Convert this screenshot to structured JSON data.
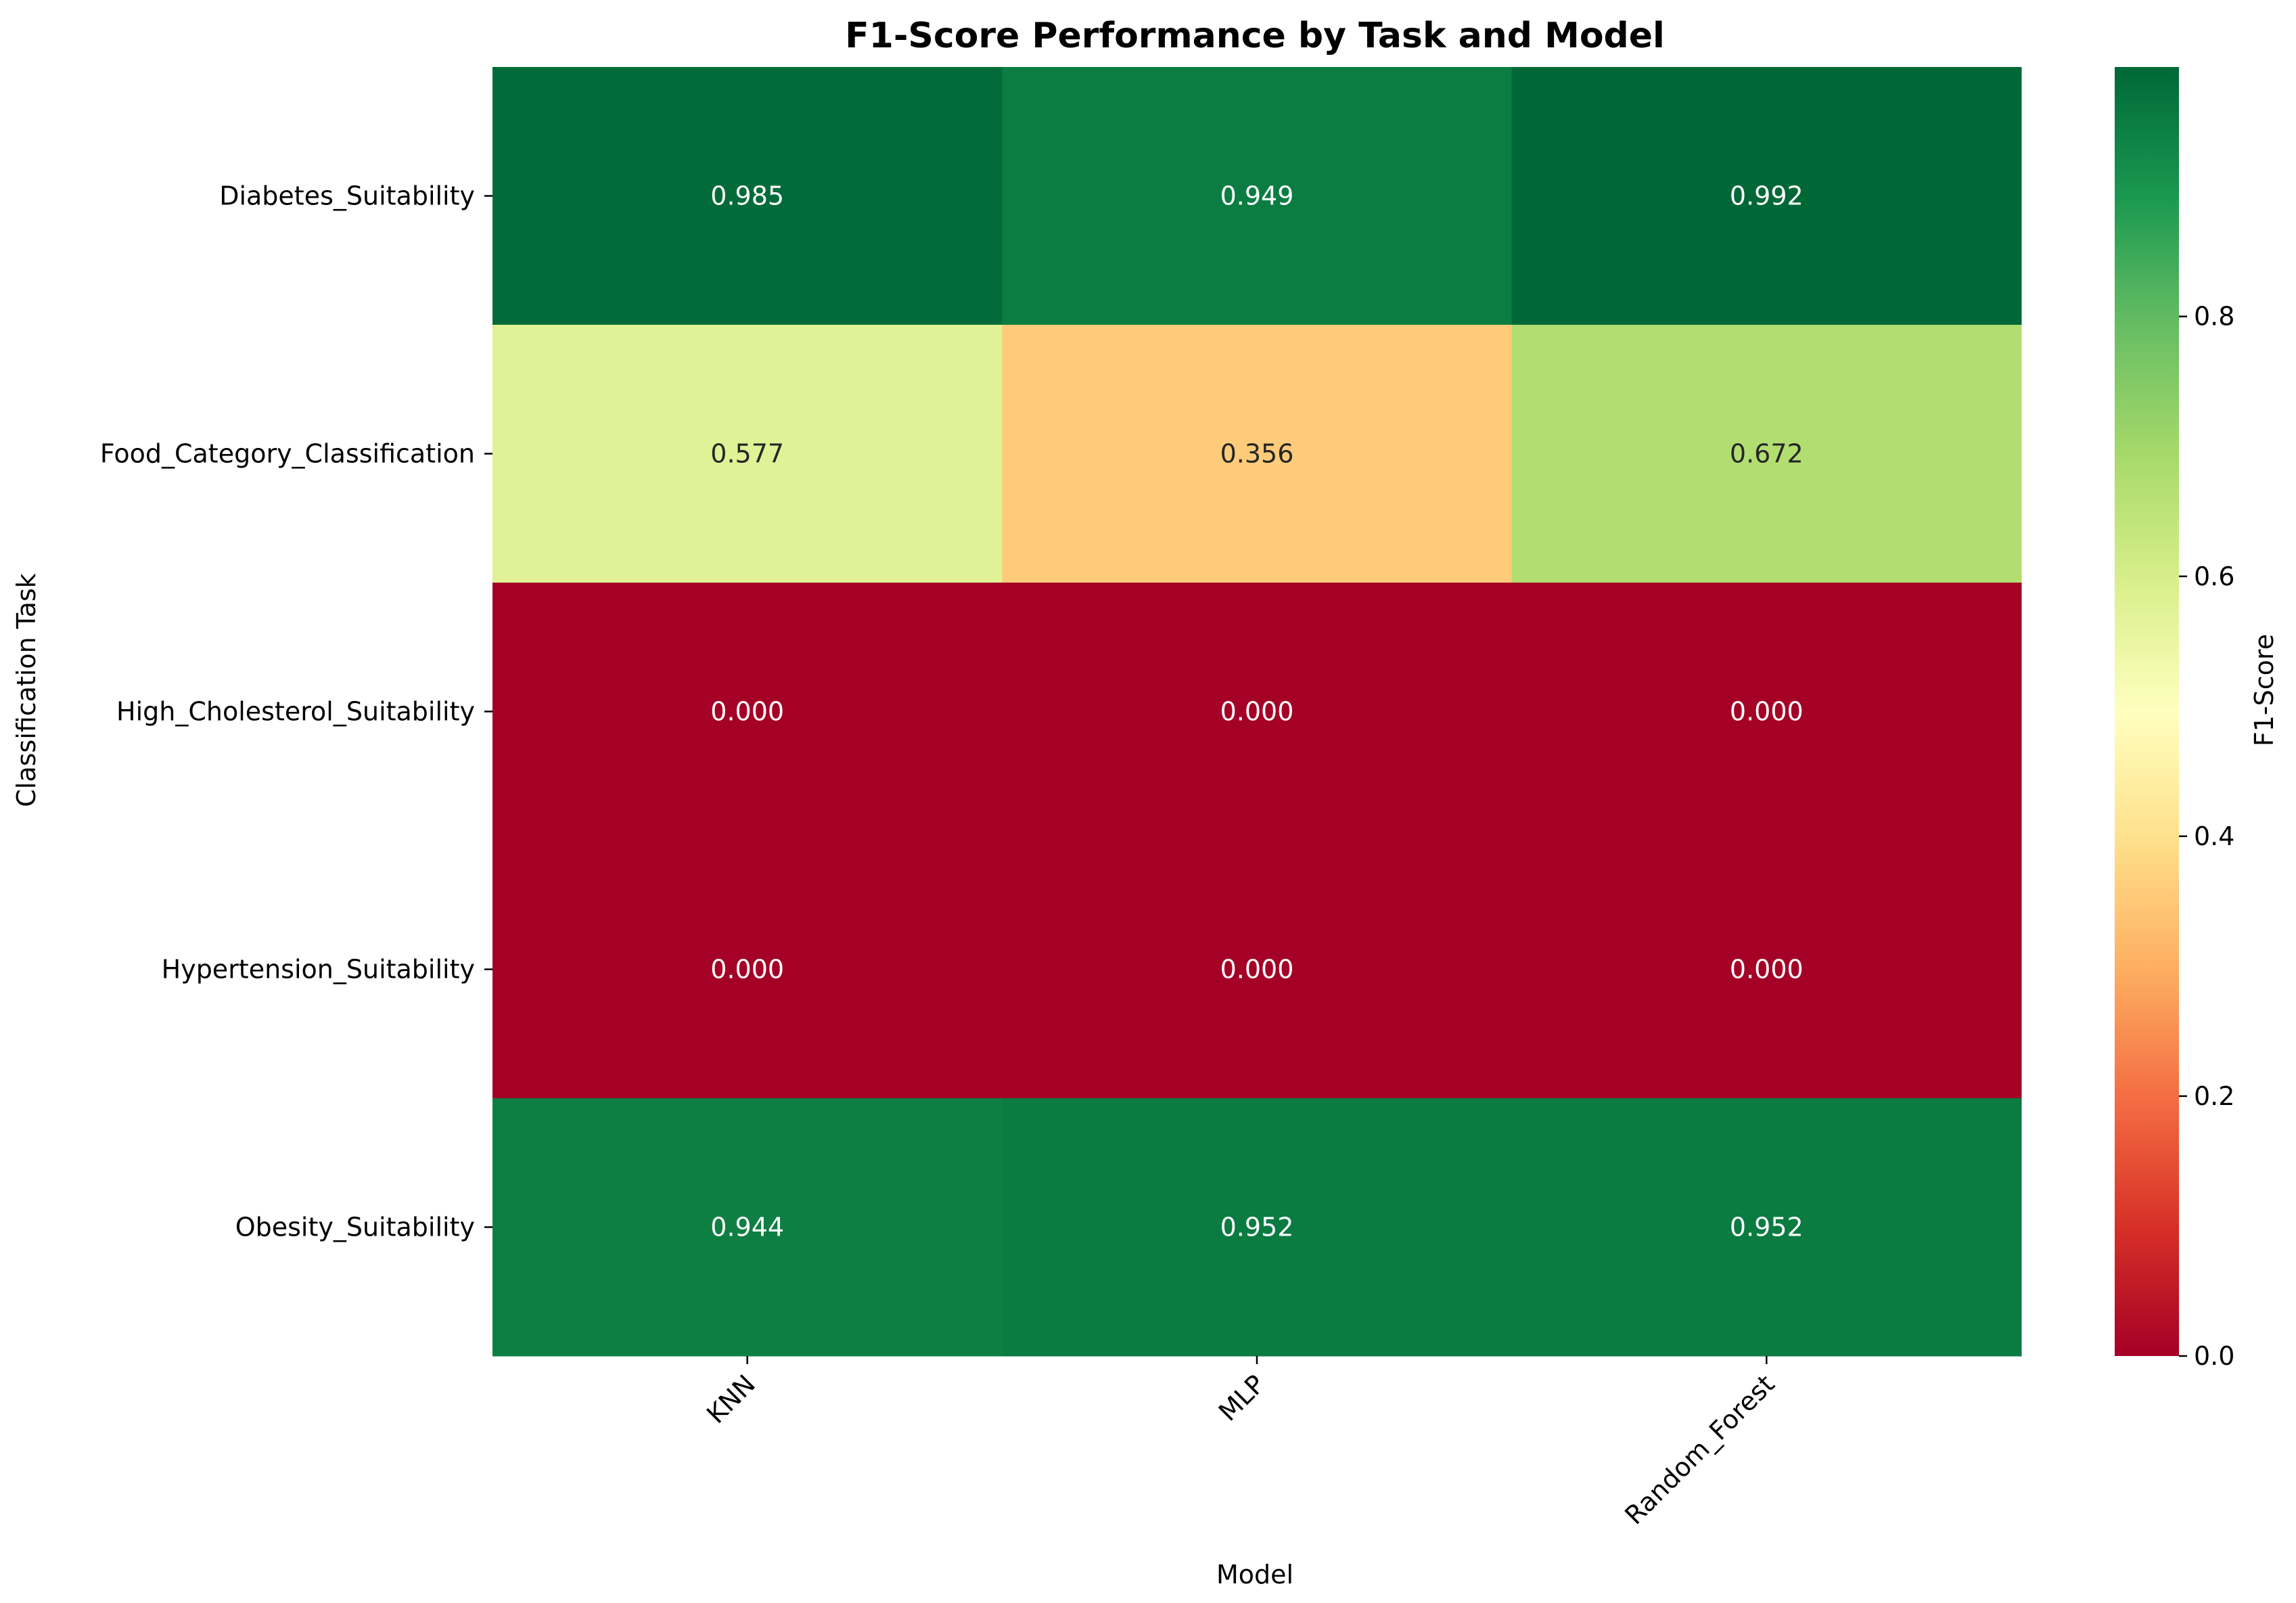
{
  "chart_data": {
    "type": "heatmap",
    "title": "F1-Score Performance by Task and Model",
    "xlabel": "Model",
    "ylabel": "Classification Task",
    "x_categories": [
      "KNN",
      "MLP",
      "Random_Forest"
    ],
    "y_categories": [
      "Diabetes_Suitability",
      "Food_Category_Classification",
      "High_Cholesterol_Suitability",
      "Hypertension_Suitability",
      "Obesity_Suitability"
    ],
    "values": [
      [
        0.985,
        0.949,
        0.992
      ],
      [
        0.577,
        0.356,
        0.672
      ],
      [
        0.0,
        0.0,
        0.0
      ],
      [
        0.0,
        0.0,
        0.0
      ],
      [
        0.944,
        0.952,
        0.952
      ]
    ],
    "value_labels": [
      [
        "0.985",
        "0.949",
        "0.992"
      ],
      [
        "0.577",
        "0.356",
        "0.672"
      ],
      [
        "0.000",
        "0.000",
        "0.000"
      ],
      [
        "0.000",
        "0.000",
        "0.000"
      ],
      [
        "0.944",
        "0.952",
        "0.952"
      ]
    ],
    "colormap": "RdYlGn",
    "colorbar": {
      "label": "F1-Score",
      "range": [
        0.0,
        0.992
      ],
      "ticks": [
        0.0,
        0.2,
        0.4,
        0.6,
        0.8
      ],
      "tick_labels": [
        "0.0",
        "0.2",
        "0.4",
        "0.6",
        "0.8"
      ]
    },
    "grid": false
  }
}
